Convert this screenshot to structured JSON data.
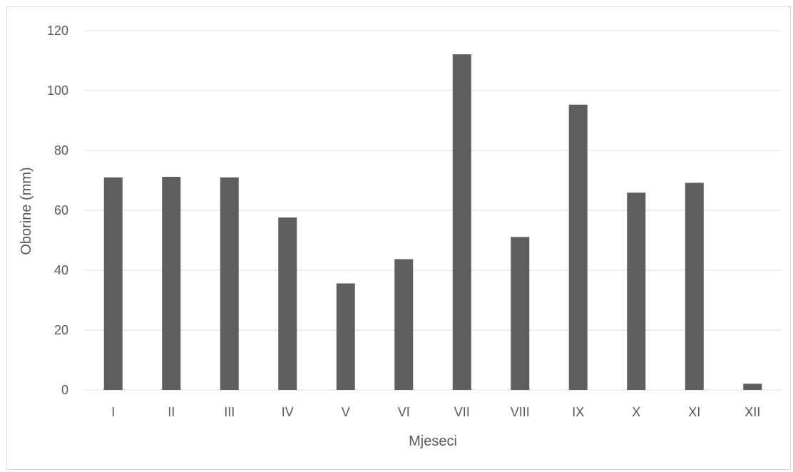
{
  "chart_data": {
    "type": "bar",
    "title": "",
    "xlabel": "Mjeseci",
    "ylabel": "Oborine (mm)",
    "categories": [
      "I",
      "II",
      "III",
      "IV",
      "V",
      "VI",
      "VII",
      "VIII",
      "IX",
      "X",
      "XI",
      "XII"
    ],
    "values": [
      71.0,
      71.2,
      71.0,
      57.6,
      35.6,
      43.7,
      112.1,
      51.1,
      95.3,
      65.9,
      69.2,
      2.1
    ],
    "ylim": [
      0,
      120
    ],
    "yticks": [
      "0",
      "20",
      "40",
      "60",
      "80",
      "100",
      "120"
    ],
    "grid": true,
    "colors": {
      "bar": "#5e5e5e",
      "grid": "#d9d9d9",
      "axis_text": "#595959",
      "frame": "#d9d9d9"
    }
  }
}
